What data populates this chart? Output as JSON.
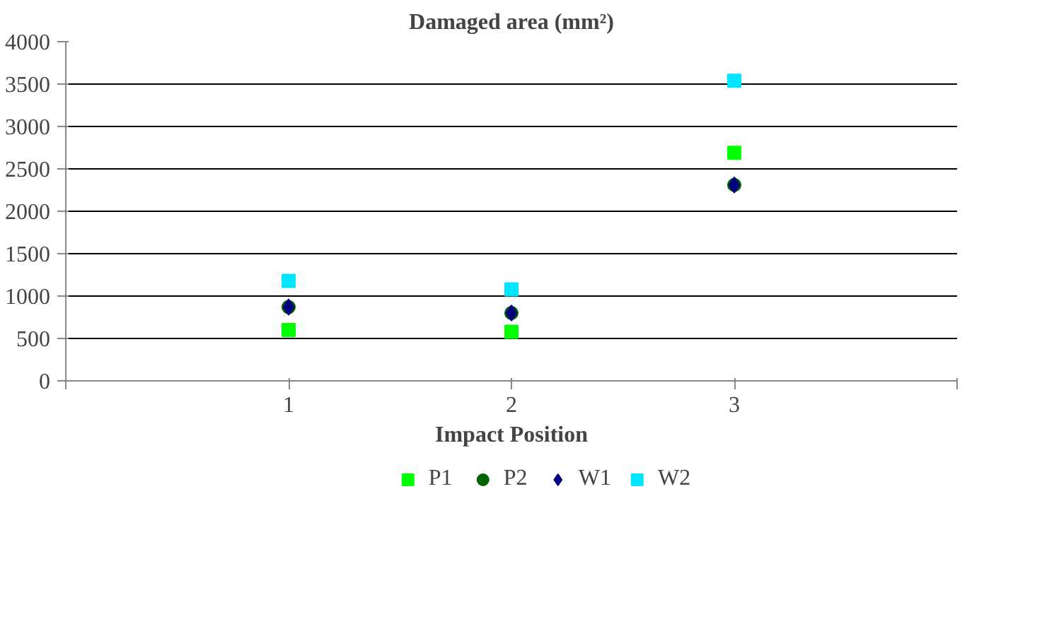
{
  "chart_data": {
    "type": "scatter",
    "title": "Damaged area (mm²)",
    "xlabel": "Impact Position",
    "x": [
      1,
      2,
      3
    ],
    "series": [
      {
        "name": "P1",
        "color": "#00ff00",
        "values": [
          600,
          580,
          2690
        ],
        "marker": "square"
      },
      {
        "name": "P2",
        "color": "#006400",
        "values": [
          870,
          800,
          2310
        ],
        "marker": "circle"
      },
      {
        "name": "W1",
        "color": "#000080",
        "values": [
          870,
          800,
          2310
        ],
        "marker": "diamond"
      },
      {
        "name": "W2",
        "color": "#00e5ff",
        "values": [
          1180,
          1080,
          3540
        ],
        "marker": "square"
      }
    ],
    "xlim": [
      0,
      4
    ],
    "xticks": [
      {
        "value": 0,
        "label": null
      },
      1,
      2,
      3,
      {
        "value": 4,
        "label": null
      }
    ],
    "ylim": [
      0,
      4000
    ],
    "yticks": [
      0,
      500,
      1000,
      1500,
      2000,
      2500,
      3000,
      3500,
      4000
    ],
    "grid": "y",
    "legend": "bottom"
  }
}
